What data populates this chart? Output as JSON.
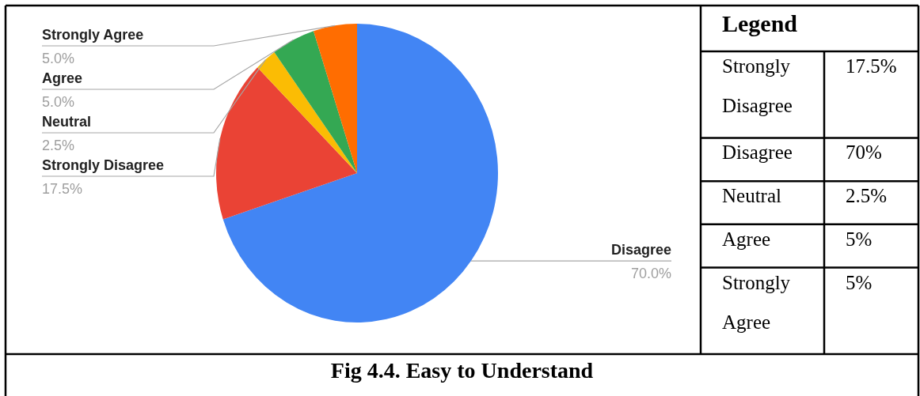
{
  "chart_data": [
    {
      "type": "pie",
      "title": "Fig 4.4. Easy to Understand",
      "categories": [
        "Disagree",
        "Strongly Disagree",
        "Neutral",
        "Agree",
        "Strongly Agree"
      ],
      "values": [
        70,
        17.5,
        2.5,
        5,
        5
      ],
      "colors": [
        "#4285f4",
        "#ea4335",
        "#fbbc04",
        "#34a853",
        "#ff6d01"
      ],
      "value_labels": [
        "70.0%",
        "17.5%",
        "2.5%",
        "5.0%",
        "5.0%"
      ]
    },
    {
      "type": "other",
      "title": "Legend",
      "categories": [
        "Strongly Disagree",
        "Disagree",
        "Neutral",
        "Agree",
        "Strongly Agree"
      ],
      "value_labels": [
        "17.5%",
        "70%",
        "2.5%",
        "5%",
        "5%"
      ]
    }
  ]
}
